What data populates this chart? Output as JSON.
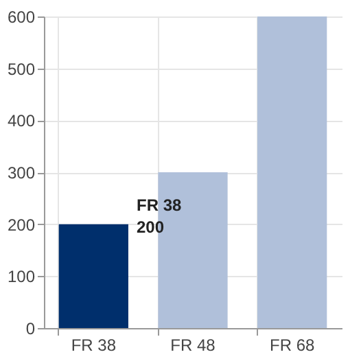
{
  "chart_data": {
    "type": "bar",
    "categories": [
      "FR 38",
      "FR 48",
      "FR 68"
    ],
    "values": [
      200,
      300,
      600
    ],
    "colors": [
      "#002f6c",
      "#b0c0da",
      "#b0c0da"
    ],
    "ylim": [
      0,
      600
    ],
    "yticks": [
      0,
      100,
      200,
      300,
      400,
      500,
      600
    ],
    "grid": true,
    "annotations": [
      {
        "text": "FR 38",
        "x": "FR 38",
        "y": 200
      },
      {
        "text": "200",
        "x": "FR 38",
        "y": 200
      }
    ]
  }
}
